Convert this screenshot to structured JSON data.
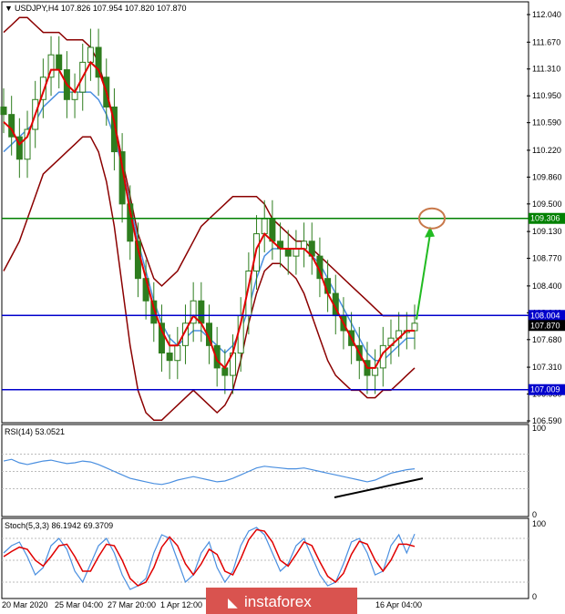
{
  "symbol_line": "USDJPY,H4  107.826 107.954 107.820 107.870",
  "rsi_title": "RSI(14) 53.0521",
  "stoch_title": "Stoch(5,3,3) 86.1942 69.3709",
  "watermark": "instaforex",
  "colors": {
    "candle": "#2e7d1e",
    "upper_band": "#8b0000",
    "fast_ma": "#e00000",
    "slow_ma": "#4a8fe0",
    "level_line": "#0000cc",
    "target_line": "#008000",
    "arrow": "#22bb22",
    "target_circle": "#c8784a",
    "trend_line": "#000000",
    "rsi_line": "#4a8fe0",
    "stoch_main": "#4a8fe0",
    "stoch_signal": "#e00000",
    "watermark_bg": "#d9534f"
  },
  "chart_data": [
    {
      "type": "line",
      "name": "price",
      "ylim": [
        106.59,
        112.04
      ],
      "y_ticks": [
        "112.040",
        "111.670",
        "111.310",
        "110.950",
        "110.590",
        "110.220",
        "109.860",
        "109.500",
        "109.130",
        "108.770",
        "108.400",
        "108.040",
        "107.680",
        "107.310",
        "106.950",
        "106.590"
      ],
      "x_tick_labels": [
        "20 Mar 2020",
        "25 Mar 04:00",
        "27 Mar 20:00",
        "1 Apr 12:00",
        "16 Apr 04:00"
      ],
      "levels": [
        {
          "label": "109.306",
          "value": 109.306,
          "role": "target"
        },
        {
          "label": "108.004",
          "value": 108.004,
          "role": "resistance"
        },
        {
          "label": "107.009",
          "value": 107.009,
          "role": "support"
        }
      ],
      "current_price": {
        "label": "107.870",
        "value": 107.87
      },
      "candles_close": [
        110.7,
        110.4,
        110.1,
        110.5,
        110.9,
        111.2,
        111.5,
        111.3,
        110.9,
        111.0,
        111.4,
        111.6,
        111.2,
        110.8,
        110.2,
        109.5,
        109.0,
        108.5,
        108.2,
        107.9,
        107.5,
        107.4,
        107.6,
        107.9,
        108.2,
        107.9,
        107.6,
        107.3,
        107.2,
        107.5,
        108.0,
        108.6,
        109.1,
        109.3,
        109.0,
        108.9,
        108.8,
        108.9,
        109.0,
        108.8,
        108.5,
        108.3,
        108.0,
        107.8,
        107.6,
        107.4,
        107.2,
        107.3,
        107.6,
        107.7,
        107.8,
        107.8,
        107.9
      ],
      "fast_ma": [
        110.6,
        110.5,
        110.3,
        110.4,
        110.7,
        111.0,
        111.3,
        111.3,
        111.1,
        111.0,
        111.2,
        111.4,
        111.3,
        111.0,
        110.6,
        110.0,
        109.4,
        108.9,
        108.5,
        108.1,
        107.8,
        107.6,
        107.6,
        107.8,
        108.0,
        107.9,
        107.7,
        107.4,
        107.3,
        107.5,
        107.9,
        108.4,
        108.9,
        109.1,
        109.0,
        108.9,
        108.9,
        108.9,
        108.9,
        108.8,
        108.6,
        108.3,
        108.1,
        107.9,
        107.7,
        107.5,
        107.3,
        107.3,
        107.5,
        107.6,
        107.7,
        107.8,
        107.8
      ],
      "slow_ma": [
        110.2,
        110.3,
        110.4,
        110.5,
        110.6,
        110.8,
        110.9,
        111.0,
        111.0,
        111.0,
        111.0,
        111.0,
        110.9,
        110.7,
        110.4,
        110.0,
        109.5,
        109.0,
        108.6,
        108.2,
        107.9,
        107.7,
        107.6,
        107.7,
        107.8,
        107.8,
        107.7,
        107.6,
        107.5,
        107.6,
        107.8,
        108.1,
        108.5,
        108.8,
        108.9,
        108.9,
        108.9,
        108.9,
        108.9,
        108.8,
        108.7,
        108.5,
        108.3,
        108.1,
        107.9,
        107.7,
        107.5,
        107.4,
        107.4,
        107.5,
        107.6,
        107.7,
        107.7
      ],
      "upper_band": [
        111.8,
        111.9,
        112.0,
        112.0,
        111.9,
        111.8,
        111.8,
        111.8,
        111.7,
        111.7,
        111.7,
        111.6,
        111.4,
        111.0,
        110.6,
        110.1,
        109.6,
        109.1,
        108.8,
        108.5,
        108.4,
        108.5,
        108.6,
        108.8,
        109.0,
        109.2,
        109.3,
        109.4,
        109.5,
        109.6,
        109.6,
        109.6,
        109.6,
        109.5,
        109.3,
        109.2,
        109.1,
        109.0,
        109.0,
        108.9,
        108.8,
        108.7,
        108.6,
        108.5,
        108.4,
        108.3,
        108.2,
        108.1,
        108.0,
        108.0,
        108.0,
        108.0,
        108.0
      ],
      "lower_band": [
        108.6,
        108.8,
        109.0,
        109.3,
        109.6,
        109.9,
        110.0,
        110.1,
        110.2,
        110.3,
        110.4,
        110.4,
        110.2,
        109.8,
        109.2,
        108.4,
        107.6,
        107.0,
        106.7,
        106.6,
        106.6,
        106.7,
        106.8,
        106.9,
        107.0,
        106.9,
        106.8,
        106.7,
        106.8,
        107.0,
        107.4,
        107.9,
        108.3,
        108.6,
        108.7,
        108.7,
        108.6,
        108.5,
        108.3,
        108.0,
        107.7,
        107.4,
        107.2,
        107.1,
        107.0,
        107.0,
        106.9,
        106.9,
        107.0,
        107.0,
        107.1,
        107.2,
        107.3
      ]
    },
    {
      "type": "line",
      "name": "RSI(14)",
      "ylim": [
        0,
        100
      ],
      "y_ticks": [
        "100",
        "0"
      ],
      "grid_levels": [
        70,
        50,
        30
      ],
      "values": [
        62,
        64,
        60,
        58,
        60,
        62,
        63,
        61,
        59,
        60,
        62,
        61,
        58,
        54,
        50,
        46,
        42,
        40,
        38,
        36,
        35,
        37,
        40,
        42,
        44,
        42,
        40,
        38,
        39,
        42,
        46,
        50,
        54,
        56,
        55,
        54,
        53,
        53,
        54,
        52,
        50,
        48,
        46,
        44,
        42,
        40,
        38,
        40,
        44,
        48,
        50,
        52,
        53
      ]
    },
    {
      "type": "line",
      "name": "Stoch(5,3,3)",
      "ylim": [
        0,
        100
      ],
      "y_ticks": [
        "100",
        "0"
      ],
      "grid_levels": [
        80,
        50,
        20
      ],
      "main": [
        60,
        70,
        75,
        55,
        30,
        40,
        70,
        80,
        65,
        35,
        20,
        45,
        70,
        80,
        60,
        30,
        10,
        15,
        25,
        60,
        85,
        80,
        50,
        20,
        30,
        60,
        75,
        40,
        20,
        35,
        70,
        90,
        95,
        85,
        60,
        35,
        45,
        70,
        80,
        55,
        30,
        15,
        20,
        45,
        75,
        80,
        60,
        30,
        35,
        70,
        85,
        60,
        86
      ],
      "signal": [
        55,
        62,
        68,
        65,
        50,
        42,
        55,
        70,
        72,
        55,
        35,
        35,
        55,
        72,
        70,
        50,
        25,
        15,
        20,
        40,
        68,
        82,
        70,
        45,
        30,
        45,
        65,
        58,
        35,
        30,
        52,
        78,
        92,
        90,
        75,
        50,
        42,
        58,
        75,
        70,
        48,
        28,
        20,
        32,
        58,
        76,
        72,
        50,
        35,
        50,
        72,
        72,
        69
      ]
    }
  ]
}
